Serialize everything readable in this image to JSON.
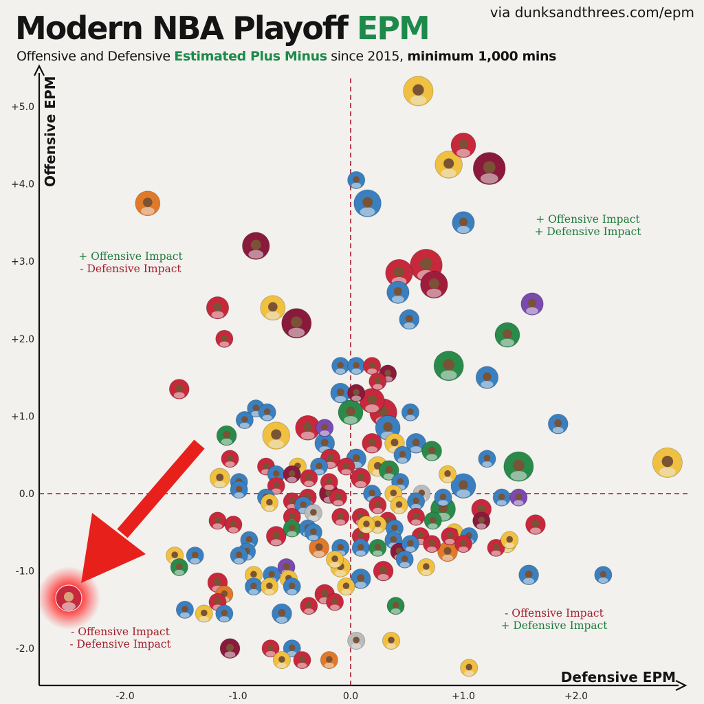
{
  "header": {
    "title_main": "Modern NBA Playoff ",
    "title_highlight": "EPM",
    "source": "via dunksandthrees.com/epm",
    "subtitle_part1": "Offensive and Defensive ",
    "subtitle_highlight": "Estimated Plus Minus",
    "subtitle_part2": " since 2015, ",
    "subtitle_bold": "minimum 1,000 mins"
  },
  "colors": {
    "positive": "#1f7a3c",
    "negative": "#a31e2c",
    "title_accent": "#1c8a4a",
    "reference_line": "#b03040",
    "arrow": "#e8201c",
    "highlight_glow": "#ff3030"
  },
  "chart_data": {
    "type": "scatter",
    "xlabel": "Defensive EPM",
    "ylabel": "Offensive EPM",
    "xlim": [
      -2.8,
      2.95
    ],
    "ylim": [
      -2.4,
      5.4
    ],
    "x_ticks": [
      "-2.0",
      "-1.0",
      "0.0",
      "+1.0",
      "+2.0"
    ],
    "x_tick_values": [
      -2,
      -1,
      0,
      1,
      2
    ],
    "y_ticks": [
      "+5.0",
      "+4.0",
      "+3.0",
      "+2.0",
      "+1.0",
      "0.0",
      "-1.0",
      "-2.0"
    ],
    "y_tick_values": [
      5,
      4,
      3,
      2,
      1,
      0,
      -1,
      -2
    ],
    "reference_lines": {
      "x": 0,
      "y": 0
    },
    "quadrant_labels": [
      {
        "quadrant": "top-right",
        "line1": "+ Offensive Impact",
        "line2": "+ Defensive Impact"
      },
      {
        "quadrant": "top-left",
        "line1": "+ Offensive Impact",
        "line2": "- Defensive Impact"
      },
      {
        "quadrant": "bottom-left",
        "line1": "- Offensive Impact",
        "line2": "- Defensive Impact"
      },
      {
        "quadrant": "bottom-right",
        "line1": "- Offensive Impact",
        "line2": "+ Defensive Impact"
      }
    ],
    "highlighted_point": {
      "x": -2.5,
      "y": -1.35
    },
    "points": [
      {
        "x": 0.6,
        "y": 5.2,
        "c": "#f0c040",
        "s": 1.2
      },
      {
        "x": 1.0,
        "y": 4.5,
        "c": "#c8283c",
        "s": 1.0
      },
      {
        "x": 0.87,
        "y": 4.25,
        "c": "#f0c040",
        "s": 1.1
      },
      {
        "x": 1.23,
        "y": 4.2,
        "c": "#8a1a3c",
        "s": 1.3
      },
      {
        "x": 0.05,
        "y": 4.05,
        "c": "#3a80c0",
        "s": 0.7
      },
      {
        "x": 0.15,
        "y": 3.75,
        "c": "#3a80c0",
        "s": 1.1
      },
      {
        "x": 1.0,
        "y": 3.5,
        "c": "#3a80c0",
        "s": 0.9
      },
      {
        "x": -1.8,
        "y": 3.75,
        "c": "#e07a2a",
        "s": 1.0
      },
      {
        "x": -0.84,
        "y": 3.2,
        "c": "#8a1a3c",
        "s": 1.1
      },
      {
        "x": 0.67,
        "y": 2.95,
        "c": "#c8283c",
        "s": 1.3
      },
      {
        "x": 0.43,
        "y": 2.85,
        "c": "#c8283c",
        "s": 1.1
      },
      {
        "x": 0.74,
        "y": 2.7,
        "c": "#a01c3c",
        "s": 1.1
      },
      {
        "x": 0.42,
        "y": 2.6,
        "c": "#3a80c0",
        "s": 0.9
      },
      {
        "x": -1.18,
        "y": 2.4,
        "c": "#c8283c",
        "s": 0.9
      },
      {
        "x": -0.69,
        "y": 2.4,
        "c": "#f0c040",
        "s": 1.0
      },
      {
        "x": -0.48,
        "y": 2.2,
        "c": "#8a1a3c",
        "s": 1.2
      },
      {
        "x": 1.61,
        "y": 2.45,
        "c": "#7a4ab0",
        "s": 0.9
      },
      {
        "x": 0.52,
        "y": 2.25,
        "c": "#3a80c0",
        "s": 0.8
      },
      {
        "x": 1.39,
        "y": 2.05,
        "c": "#2a8a4a",
        "s": 1.0
      },
      {
        "x": -1.12,
        "y": 2.0,
        "c": "#c8283c",
        "s": 0.7
      },
      {
        "x": 0.87,
        "y": 1.65,
        "c": "#2a8a4a",
        "s": 1.2
      },
      {
        "x": -0.09,
        "y": 1.65,
        "c": "#3a80c0",
        "s": 0.7
      },
      {
        "x": 0.05,
        "y": 1.65,
        "c": "#3a80c0",
        "s": 0.7
      },
      {
        "x": 0.19,
        "y": 1.65,
        "c": "#c8283c",
        "s": 0.7
      },
      {
        "x": 0.33,
        "y": 1.55,
        "c": "#8a1a3c",
        "s": 0.7
      },
      {
        "x": 0.24,
        "y": 1.45,
        "c": "#c8283c",
        "s": 0.7
      },
      {
        "x": 1.21,
        "y": 1.5,
        "c": "#3a80c0",
        "s": 0.9
      },
      {
        "x": 0.05,
        "y": 1.3,
        "c": "#8a1a3c",
        "s": 0.7
      },
      {
        "x": -1.52,
        "y": 1.35,
        "c": "#c8283c",
        "s": 0.8
      },
      {
        "x": -0.09,
        "y": 1.3,
        "c": "#3a80c0",
        "s": 0.8
      },
      {
        "x": 0.19,
        "y": 1.2,
        "c": "#c8283c",
        "s": 1.0
      },
      {
        "x": 0.0,
        "y": 1.05,
        "c": "#2a8a4a",
        "s": 1.0
      },
      {
        "x": 0.29,
        "y": 1.05,
        "c": "#c8283c",
        "s": 1.1
      },
      {
        "x": 0.53,
        "y": 1.05,
        "c": "#3a80c0",
        "s": 0.7
      },
      {
        "x": -0.84,
        "y": 1.1,
        "c": "#3a80c0",
        "s": 0.7
      },
      {
        "x": -0.74,
        "y": 1.05,
        "c": "#3a80c0",
        "s": 0.7
      },
      {
        "x": -0.94,
        "y": 0.95,
        "c": "#3a80c0",
        "s": 0.7
      },
      {
        "x": 1.84,
        "y": 0.9,
        "c": "#3a80c0",
        "s": 0.8
      },
      {
        "x": -0.38,
        "y": 0.85,
        "c": "#c8283c",
        "s": 1.0
      },
      {
        "x": -0.23,
        "y": 0.85,
        "c": "#7a4ab0",
        "s": 0.7
      },
      {
        "x": 0.33,
        "y": 0.85,
        "c": "#3a80c0",
        "s": 1.0
      },
      {
        "x": -0.66,
        "y": 0.75,
        "c": "#f0c040",
        "s": 1.1
      },
      {
        "x": -1.1,
        "y": 0.75,
        "c": "#2a8a4a",
        "s": 0.8
      },
      {
        "x": -0.23,
        "y": 0.65,
        "c": "#3a80c0",
        "s": 0.8
      },
      {
        "x": 0.19,
        "y": 0.65,
        "c": "#c8283c",
        "s": 0.8
      },
      {
        "x": 0.39,
        "y": 0.65,
        "c": "#f0c040",
        "s": 0.8
      },
      {
        "x": 0.58,
        "y": 0.65,
        "c": "#3a80c0",
        "s": 0.8
      },
      {
        "x": 0.72,
        "y": 0.55,
        "c": "#2a8a4a",
        "s": 0.8
      },
      {
        "x": 0.46,
        "y": 0.5,
        "c": "#3a80c0",
        "s": 0.7
      },
      {
        "x": 0.05,
        "y": 0.45,
        "c": "#3a80c0",
        "s": 0.8
      },
      {
        "x": 0.24,
        "y": 0.35,
        "c": "#f0c040",
        "s": 0.8
      },
      {
        "x": -0.18,
        "y": 0.45,
        "c": "#c8283c",
        "s": 0.8
      },
      {
        "x": -0.04,
        "y": 0.35,
        "c": "#c8283c",
        "s": 0.7
      },
      {
        "x": -1.07,
        "y": 0.45,
        "c": "#c8283c",
        "s": 0.7
      },
      {
        "x": -0.75,
        "y": 0.35,
        "c": "#c8283c",
        "s": 0.7
      },
      {
        "x": -0.47,
        "y": 0.35,
        "c": "#f0c040",
        "s": 0.7
      },
      {
        "x": -0.28,
        "y": 0.35,
        "c": "#3a80c0",
        "s": 0.7
      },
      {
        "x": 0.34,
        "y": 0.3,
        "c": "#2a8a4a",
        "s": 0.8
      },
      {
        "x": 1.21,
        "y": 0.45,
        "c": "#3a80c0",
        "s": 0.7
      },
      {
        "x": 1.49,
        "y": 0.35,
        "c": "#2a8a4a",
        "s": 1.2
      },
      {
        "x": 2.81,
        "y": 0.4,
        "c": "#f0c040",
        "s": 1.2
      },
      {
        "x": -1.16,
        "y": 0.2,
        "c": "#f0c040",
        "s": 0.8
      },
      {
        "x": -0.99,
        "y": 0.15,
        "c": "#3a80c0",
        "s": 0.7
      },
      {
        "x": -0.66,
        "y": 0.25,
        "c": "#3a80c0",
        "s": 0.7
      },
      {
        "x": -0.52,
        "y": 0.25,
        "c": "#8a1a3c",
        "s": 0.7
      },
      {
        "x": -0.37,
        "y": 0.2,
        "c": "#c8283c",
        "s": 0.7
      },
      {
        "x": -0.19,
        "y": 0.15,
        "c": "#c8283c",
        "s": 0.7
      },
      {
        "x": 0.09,
        "y": 0.2,
        "c": "#c8283c",
        "s": 0.8
      },
      {
        "x": 0.44,
        "y": 0.15,
        "c": "#3a80c0",
        "s": 0.7
      },
      {
        "x": 0.86,
        "y": 0.25,
        "c": "#f0c040",
        "s": 0.7
      },
      {
        "x": 1.0,
        "y": 0.1,
        "c": "#3a80c0",
        "s": 1.0
      },
      {
        "x": -0.99,
        "y": 0.05,
        "c": "#3a80c0",
        "s": 0.7
      },
      {
        "x": -0.66,
        "y": 0.1,
        "c": "#c8283c",
        "s": 0.7
      },
      {
        "x": -0.19,
        "y": 0.0,
        "c": "#8a1a3c",
        "s": 0.8
      },
      {
        "x": 0.19,
        "y": 0.0,
        "c": "#3a80c0",
        "s": 0.7
      },
      {
        "x": 0.38,
        "y": 0.0,
        "c": "#f0c040",
        "s": 0.7
      },
      {
        "x": 0.63,
        "y": 0.0,
        "c": "#bbbbbb",
        "s": 0.7
      },
      {
        "x": -0.38,
        "y": -0.05,
        "c": "#c8283c",
        "s": 0.7
      },
      {
        "x": -0.52,
        "y": -0.1,
        "c": "#c8283c",
        "s": 0.7
      },
      {
        "x": -0.75,
        "y": -0.05,
        "c": "#3a80c0",
        "s": 0.7
      },
      {
        "x": -0.11,
        "y": -0.05,
        "c": "#c8283c",
        "s": 0.7
      },
      {
        "x": 0.58,
        "y": -0.1,
        "c": "#3a80c0",
        "s": 0.7
      },
      {
        "x": 0.82,
        "y": -0.05,
        "c": "#3a80c0",
        "s": 0.7
      },
      {
        "x": 1.34,
        "y": -0.05,
        "c": "#3a80c0",
        "s": 0.7
      },
      {
        "x": 1.49,
        "y": -0.05,
        "c": "#7a4ab0",
        "s": 0.7
      },
      {
        "x": -0.72,
        "y": -0.12,
        "c": "#f0c040",
        "s": 0.7
      },
      {
        "x": -0.42,
        "y": -0.15,
        "c": "#3a80c0",
        "s": 0.7
      },
      {
        "x": 0.24,
        "y": -0.15,
        "c": "#c8283c",
        "s": 0.7
      },
      {
        "x": 0.43,
        "y": -0.15,
        "c": "#f0c040",
        "s": 0.7
      },
      {
        "x": 0.82,
        "y": -0.2,
        "c": "#2a8a4a",
        "s": 1.0
      },
      {
        "x": 1.16,
        "y": -0.2,
        "c": "#c8283c",
        "s": 0.8
      },
      {
        "x": -0.52,
        "y": -0.3,
        "c": "#c8283c",
        "s": 0.7
      },
      {
        "x": -0.33,
        "y": -0.25,
        "c": "#bbbbbb",
        "s": 0.7
      },
      {
        "x": -0.09,
        "y": -0.3,
        "c": "#c8283c",
        "s": 0.7
      },
      {
        "x": 0.09,
        "y": -0.3,
        "c": "#c8283c",
        "s": 0.7
      },
      {
        "x": 0.33,
        "y": -0.35,
        "c": "#c8283c",
        "s": 0.7
      },
      {
        "x": 0.58,
        "y": -0.3,
        "c": "#c8283c",
        "s": 0.7
      },
      {
        "x": 0.73,
        "y": -0.35,
        "c": "#2a8a4a",
        "s": 0.7
      },
      {
        "x": 1.16,
        "y": -0.35,
        "c": "#8a1a3c",
        "s": 0.7
      },
      {
        "x": -1.18,
        "y": -0.35,
        "c": "#c8283c",
        "s": 0.7
      },
      {
        "x": -1.04,
        "y": -0.4,
        "c": "#c8283c",
        "s": 0.7
      },
      {
        "x": -0.52,
        "y": -0.45,
        "c": "#2a8a4a",
        "s": 0.7
      },
      {
        "x": -0.38,
        "y": -0.45,
        "c": "#3a80c0",
        "s": 0.7
      },
      {
        "x": 0.24,
        "y": -0.4,
        "c": "#f0c040",
        "s": 0.7
      },
      {
        "x": 0.39,
        "y": -0.45,
        "c": "#3a80c0",
        "s": 0.7
      },
      {
        "x": 0.92,
        "y": -0.5,
        "c": "#f0c040",
        "s": 0.7
      },
      {
        "x": -0.66,
        "y": -0.55,
        "c": "#c8283c",
        "s": 0.8
      },
      {
        "x": -0.33,
        "y": -0.5,
        "c": "#3a80c0",
        "s": 0.7
      },
      {
        "x": 0.09,
        "y": -0.55,
        "c": "#c8283c",
        "s": 0.7
      },
      {
        "x": 0.14,
        "y": -0.4,
        "c": "#f0c040",
        "s": 0.7
      },
      {
        "x": 0.62,
        "y": -0.55,
        "c": "#c8283c",
        "s": 0.7
      },
      {
        "x": 0.88,
        "y": -0.55,
        "c": "#c8283c",
        "s": 0.7
      },
      {
        "x": 1.05,
        "y": -0.55,
        "c": "#3a80c0",
        "s": 0.7
      },
      {
        "x": 1.64,
        "y": -0.4,
        "c": "#c8283c",
        "s": 0.8
      },
      {
        "x": -0.9,
        "y": -0.6,
        "c": "#3a80c0",
        "s": 0.7
      },
      {
        "x": 0.38,
        "y": -0.6,
        "c": "#3a80c0",
        "s": 0.7
      },
      {
        "x": 0.72,
        "y": -0.65,
        "c": "#c8283c",
        "s": 0.7
      },
      {
        "x": 1.39,
        "y": -0.65,
        "c": "#f0c040",
        "s": 0.7
      },
      {
        "x": -0.92,
        "y": -0.75,
        "c": "#3a80c0",
        "s": 0.7
      },
      {
        "x": -0.28,
        "y": -0.7,
        "c": "#e07a2a",
        "s": 0.8
      },
      {
        "x": -0.09,
        "y": -0.7,
        "c": "#3a80c0",
        "s": 0.7
      },
      {
        "x": 0.09,
        "y": -0.7,
        "c": "#3a80c0",
        "s": 0.7
      },
      {
        "x": 0.24,
        "y": -0.7,
        "c": "#2a8a4a",
        "s": 0.7
      },
      {
        "x": 0.43,
        "y": -0.75,
        "c": "#8a1a3c",
        "s": 0.7
      },
      {
        "x": 0.53,
        "y": -0.65,
        "c": "#3a80c0",
        "s": 0.7
      },
      {
        "x": 0.86,
        "y": -0.75,
        "c": "#e07a2a",
        "s": 0.8
      },
      {
        "x": 1.0,
        "y": -0.65,
        "c": "#c8283c",
        "s": 0.7
      },
      {
        "x": 1.29,
        "y": -0.7,
        "c": "#c8283c",
        "s": 0.7
      },
      {
        "x": 1.41,
        "y": -0.6,
        "c": "#f0c040",
        "s": 0.7
      },
      {
        "x": -1.56,
        "y": -0.8,
        "c": "#f0c040",
        "s": 0.7
      },
      {
        "x": -1.38,
        "y": -0.8,
        "c": "#3a80c0",
        "s": 0.7
      },
      {
        "x": -0.99,
        "y": -0.8,
        "c": "#3a80c0",
        "s": 0.7
      },
      {
        "x": -0.14,
        "y": -0.85,
        "c": "#f0c040",
        "s": 0.7
      },
      {
        "x": 0.48,
        "y": -0.85,
        "c": "#3a80c0",
        "s": 0.7
      },
      {
        "x": -1.52,
        "y": -0.95,
        "c": "#2a8a4a",
        "s": 0.7
      },
      {
        "x": -0.57,
        "y": -0.95,
        "c": "#7a4ab0",
        "s": 0.7
      },
      {
        "x": -0.09,
        "y": -0.95,
        "c": "#f0c040",
        "s": 0.8
      },
      {
        "x": 0.29,
        "y": -1.0,
        "c": "#c8283c",
        "s": 0.8
      },
      {
        "x": 0.67,
        "y": -0.95,
        "c": "#f0c040",
        "s": 0.7
      },
      {
        "x": -0.86,
        "y": -1.05,
        "c": "#f0c040",
        "s": 0.7
      },
      {
        "x": -0.7,
        "y": -1.05,
        "c": "#3a80c0",
        "s": 0.7
      },
      {
        "x": -0.55,
        "y": -1.1,
        "c": "#f0c040",
        "s": 0.7
      },
      {
        "x": 0.09,
        "y": -1.1,
        "c": "#3a80c0",
        "s": 0.8
      },
      {
        "x": -1.18,
        "y": -1.15,
        "c": "#c8283c",
        "s": 0.8
      },
      {
        "x": -0.86,
        "y": -1.2,
        "c": "#3a80c0",
        "s": 0.7
      },
      {
        "x": -0.72,
        "y": -1.2,
        "c": "#f0c040",
        "s": 0.7
      },
      {
        "x": -0.52,
        "y": -1.2,
        "c": "#3a80c0",
        "s": 0.7
      },
      {
        "x": -0.04,
        "y": -1.2,
        "c": "#f0c040",
        "s": 0.7
      },
      {
        "x": -1.12,
        "y": -1.3,
        "c": "#e07a2a",
        "s": 0.7
      },
      {
        "x": -0.23,
        "y": -1.3,
        "c": "#c8283c",
        "s": 0.8
      },
      {
        "x": -0.14,
        "y": -1.4,
        "c": "#c8283c",
        "s": 0.7
      },
      {
        "x": -1.18,
        "y": -1.4,
        "c": "#c8283c",
        "s": 0.7
      },
      {
        "x": -1.3,
        "y": -1.55,
        "c": "#f0c040",
        "s": 0.7
      },
      {
        "x": -1.12,
        "y": -1.55,
        "c": "#3a80c0",
        "s": 0.7
      },
      {
        "x": -0.61,
        "y": -1.55,
        "c": "#3a80c0",
        "s": 0.8
      },
      {
        "x": -0.37,
        "y": -1.45,
        "c": "#c8283c",
        "s": 0.7
      },
      {
        "x": 0.4,
        "y": -1.45,
        "c": "#2a8a4a",
        "s": 0.7
      },
      {
        "x": -1.47,
        "y": -1.5,
        "c": "#3a80c0",
        "s": 0.7
      },
      {
        "x": 1.58,
        "y": -1.05,
        "c": "#3a80c0",
        "s": 0.8
      },
      {
        "x": 2.24,
        "y": -1.05,
        "c": "#3a80c0",
        "s": 0.7
      },
      {
        "x": -1.07,
        "y": -2.0,
        "c": "#8a1a3c",
        "s": 0.8
      },
      {
        "x": -0.71,
        "y": -2.0,
        "c": "#c8283c",
        "s": 0.7
      },
      {
        "x": -0.52,
        "y": -2.0,
        "c": "#3a80c0",
        "s": 0.7
      },
      {
        "x": -0.61,
        "y": -2.15,
        "c": "#f0c040",
        "s": 0.7
      },
      {
        "x": -0.43,
        "y": -2.15,
        "c": "#c8283c",
        "s": 0.7
      },
      {
        "x": -0.19,
        "y": -2.15,
        "c": "#e07a2a",
        "s": 0.7
      },
      {
        "x": 0.05,
        "y": -1.9,
        "c": "#bbbbbb",
        "s": 0.7
      },
      {
        "x": 0.36,
        "y": -1.9,
        "c": "#f0c040",
        "s": 0.7
      },
      {
        "x": 1.05,
        "y": -2.25,
        "c": "#f0c040",
        "s": 0.7
      }
    ]
  }
}
